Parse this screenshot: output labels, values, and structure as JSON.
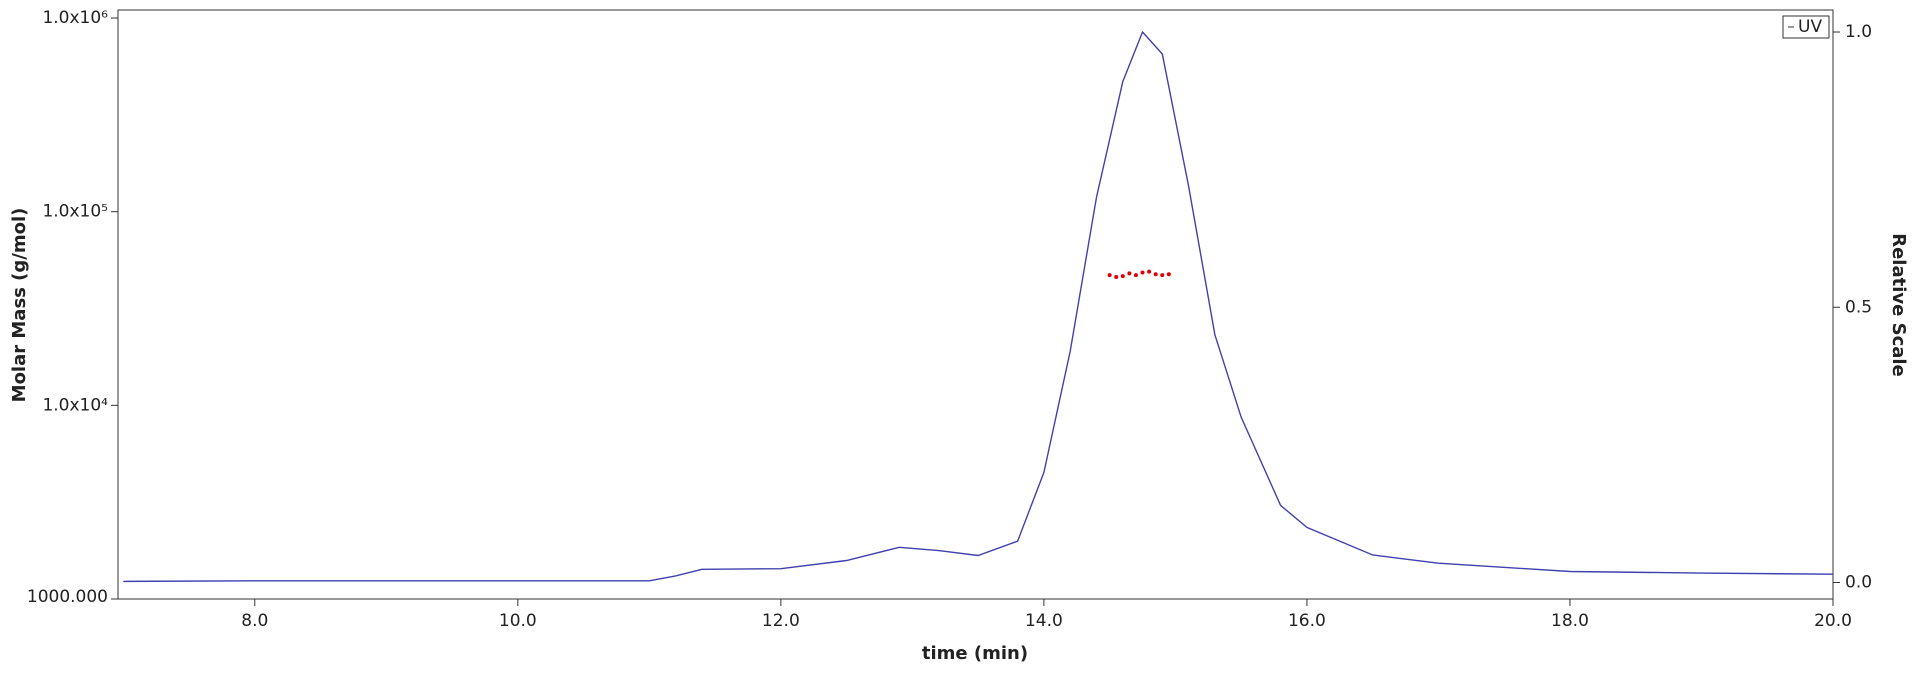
{
  "chart_data": {
    "type": "line",
    "xlabel": "time (min)",
    "ylabel": "Molar Mass (g/mol)",
    "y2label": "Relative Scale",
    "xlim": [
      6.96,
      20.0
    ],
    "xticks": [
      {
        "value": 8,
        "label": "8.0"
      },
      {
        "value": 10,
        "label": "10.0"
      },
      {
        "value": 12,
        "label": "12.0"
      },
      {
        "value": 14,
        "label": "14.0"
      },
      {
        "value": 16,
        "label": "16.0"
      },
      {
        "value": 18,
        "label": "18.0"
      },
      {
        "value": 20,
        "label": "20.0"
      }
    ],
    "yscale": "log",
    "ylim": [
      1000,
      1100000
    ],
    "yticks": [
      {
        "value": 1000,
        "label": "1000.000"
      },
      {
        "value": 10000,
        "label": "1.0x10⁴"
      },
      {
        "value": 100000,
        "label": "1.0x10⁵"
      },
      {
        "value": 1000000,
        "label": "1.0x10⁶"
      }
    ],
    "y2lim": [
      -0.03,
      1.04
    ],
    "y2ticks": [
      {
        "value": 0,
        "label": "0.0"
      },
      {
        "value": 0.5,
        "label": "0.5"
      },
      {
        "value": 1,
        "label": "1.0"
      }
    ],
    "legend": "upper right",
    "series": [
      {
        "name": "Molar Mass",
        "color": "#e00000",
        "style": "points",
        "x": [
          14.5,
          14.55,
          14.6,
          14.65,
          14.7,
          14.75,
          14.8,
          14.85,
          14.9,
          14.95
        ],
        "values": [
          47000,
          46000,
          46500,
          48000,
          47000,
          48500,
          49000,
          47500,
          47000,
          47500
        ]
      },
      {
        "name": "UV",
        "color": "#4040b0",
        "style": "line",
        "axis": "y2",
        "x": [
          7.0,
          8.0,
          11.0,
          11.2,
          11.4,
          12.0,
          12.5,
          12.9,
          13.2,
          13.5,
          13.8,
          14.0,
          14.2,
          14.4,
          14.6,
          14.75,
          14.9,
          15.1,
          15.3,
          15.5,
          15.8,
          16.0,
          16.5,
          17.0,
          18.0,
          19.0,
          20.0
        ],
        "values": [
          0.002,
          0.003,
          0.003,
          0.012,
          0.024,
          0.025,
          0.04,
          0.064,
          0.058,
          0.049,
          0.075,
          0.2,
          0.42,
          0.7,
          0.91,
          1.0,
          0.96,
          0.72,
          0.45,
          0.3,
          0.14,
          0.1,
          0.05,
          0.035,
          0.02,
          0.017,
          0.015
        ]
      }
    ]
  }
}
